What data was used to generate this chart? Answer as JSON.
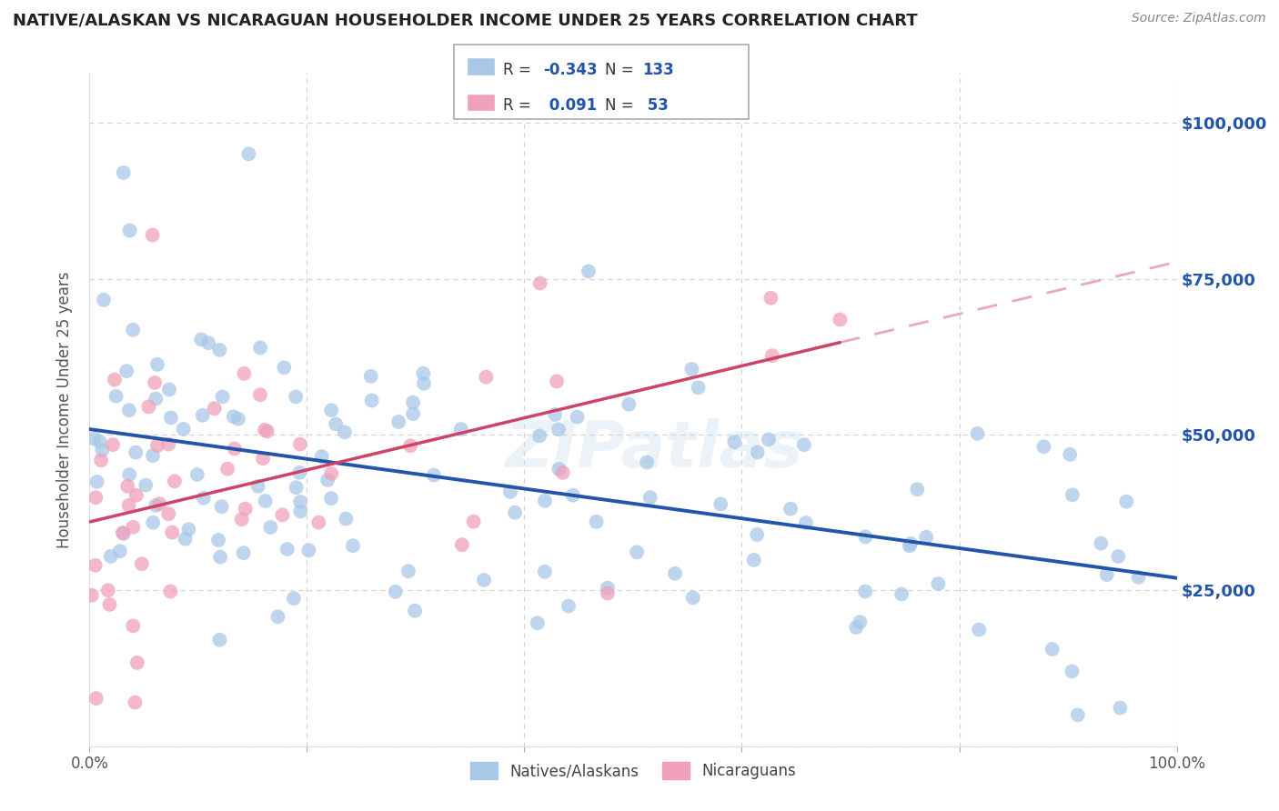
{
  "title": "NATIVE/ALASKAN VS NICARAGUAN HOUSEHOLDER INCOME UNDER 25 YEARS CORRELATION CHART",
  "source": "Source: ZipAtlas.com",
  "ylabel": "Householder Income Under 25 years",
  "xlim": [
    0.0,
    100.0
  ],
  "ylim": [
    0,
    108000
  ],
  "yticks": [
    0,
    25000,
    50000,
    75000,
    100000
  ],
  "ytick_labels": [
    "",
    "$25,000",
    "$50,000",
    "$75,000",
    "$100,000"
  ],
  "blue_color": "#a8c8e8",
  "pink_color": "#f0a0b8",
  "blue_line_color": "#2255aa",
  "pink_line_color": "#cc4466",
  "watermark": "ZIPatlas",
  "R_blue": -0.343,
  "N_blue": 133,
  "R_pink": 0.091,
  "N_pink": 53,
  "blue_intercept": 48000,
  "blue_slope": -220,
  "pink_intercept": 38000,
  "pink_slope": 320,
  "blue_scatter_seed": 42,
  "pink_scatter_seed": 7
}
